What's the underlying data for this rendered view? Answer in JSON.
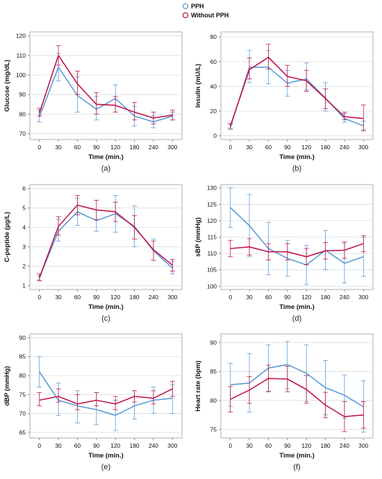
{
  "legend": {
    "items": [
      {
        "label": "PPH",
        "color": "#5b9bd5"
      },
      {
        "label": "Without PPH",
        "color": "#c0134b"
      }
    ]
  },
  "chart_data": [
    {
      "type": "line",
      "caption": "(a)",
      "xlabel": "Time (min.)",
      "ylabel": "Glucose (mg/dL)",
      "categories": [
        "0",
        "30",
        "60",
        "90",
        "120",
        "180",
        "240",
        "300"
      ],
      "ylim": [
        67,
        122
      ],
      "yticks": [
        70,
        80,
        90,
        100,
        110,
        120
      ],
      "grid": "horizontal",
      "series": [
        {
          "name": "PPH",
          "color": "#5b9bd5",
          "values": [
            78.5,
            104,
            89.5,
            82.5,
            88,
            79,
            76,
            79
          ],
          "err_low": [
            76,
            97,
            81,
            77,
            81,
            74,
            73,
            77
          ],
          "err_high": [
            82,
            111,
            99,
            89,
            95,
            84,
            79,
            81
          ]
        },
        {
          "name": "Without PPH",
          "color": "#c0134b",
          "values": [
            80.5,
            110,
            95.5,
            85,
            84.5,
            81,
            78,
            79.5
          ],
          "err_low": [
            79,
            105,
            90,
            80,
            81,
            77,
            75,
            77
          ],
          "err_high": [
            83,
            115,
            102,
            91,
            89,
            86,
            81,
            82
          ]
        }
      ]
    },
    {
      "type": "line",
      "caption": "(b)",
      "xlabel": "Time (min.)",
      "ylabel": "Insulin (mU/L)",
      "categories": [
        "0",
        "30",
        "60",
        "90",
        "120",
        "180",
        "240",
        "300"
      ],
      "ylim": [
        -3,
        84
      ],
      "yticks": [
        0,
        20,
        40,
        60,
        80
      ],
      "grid": "horizontal",
      "series": [
        {
          "name": "PPH",
          "color": "#5b9bd5",
          "values": [
            7,
            55.5,
            55.5,
            42.5,
            46,
            30.5,
            14,
            8
          ],
          "err_low": [
            5,
            43,
            42,
            32,
            37,
            20,
            11,
            5
          ],
          "err_high": [
            9,
            69,
            69,
            53,
            59,
            43,
            18,
            12
          ]
        },
        {
          "name": "Without PPH",
          "color": "#c0134b",
          "values": [
            8,
            53.5,
            63.5,
            48,
            44.5,
            30,
            15.5,
            14
          ],
          "err_low": [
            6,
            46,
            54,
            40,
            36,
            22,
            13,
            4
          ],
          "err_high": [
            10,
            63,
            74,
            57,
            53,
            38,
            19,
            25
          ]
        }
      ]
    },
    {
      "type": "line",
      "caption": "(c)",
      "xlabel": "Time (min.)",
      "ylabel": "C-peptide (µg/L)",
      "categories": [
        "0",
        "30",
        "60",
        "90",
        "120",
        "180",
        "240",
        "300"
      ],
      "ylim": [
        0.8,
        6.2
      ],
      "yticks": [
        1,
        2,
        3,
        4,
        5,
        6
      ],
      "grid": "horizontal",
      "series": [
        {
          "name": "PPH",
          "color": "#5b9bd5",
          "values": [
            1.4,
            3.8,
            4.8,
            4.35,
            4.7,
            4.05,
            2.8,
            1.9
          ],
          "err_low": [
            1.3,
            3.3,
            4.1,
            3.8,
            3.75,
            3.0,
            2.3,
            1.6
          ],
          "err_high": [
            1.5,
            4.4,
            5.5,
            4.9,
            5.65,
            5.1,
            3.4,
            2.25
          ]
        },
        {
          "name": "Without PPH",
          "color": "#c0134b",
          "values": [
            1.4,
            4.05,
            5.15,
            4.9,
            4.8,
            4.0,
            2.85,
            2.05
          ],
          "err_low": [
            1.25,
            3.6,
            4.65,
            4.4,
            4.3,
            3.4,
            2.3,
            1.75
          ],
          "err_high": [
            1.6,
            4.55,
            5.65,
            5.4,
            5.3,
            4.6,
            3.3,
            2.35
          ]
        }
      ]
    },
    {
      "type": "line",
      "caption": "(d)",
      "xlabel": "Time (min.)",
      "ylabel": "sBP (mmHg)",
      "categories": [
        "0",
        "30",
        "60",
        "90",
        "120",
        "180",
        "240",
        "300"
      ],
      "ylim": [
        99,
        131
      ],
      "yticks": [
        100,
        105,
        110,
        115,
        120,
        125,
        130
      ],
      "grid": "horizontal",
      "series": [
        {
          "name": "PPH",
          "color": "#5b9bd5",
          "values": [
            124,
            118.5,
            111.5,
            108.5,
            106.5,
            111,
            107,
            109
          ],
          "err_low": [
            118,
            109,
            103.5,
            103,
            100.5,
            105,
            101,
            103
          ],
          "err_high": [
            130,
            128,
            119.5,
            114,
            112.5,
            117,
            113,
            115
          ]
        },
        {
          "name": "Without PPH",
          "color": "#c0134b",
          "values": [
            111.5,
            112,
            110.5,
            110.5,
            109,
            110.8,
            111,
            113
          ],
          "err_low": [
            109,
            109.5,
            108,
            108,
            106.5,
            108.3,
            108.5,
            110.5
          ],
          "err_high": [
            114,
            114.5,
            113,
            113,
            111.5,
            113.3,
            113.5,
            115.5
          ]
        }
      ]
    },
    {
      "type": "line",
      "caption": "(e)",
      "xlabel": "Time (min.)",
      "ylabel": "dBP (mmHg)",
      "categories": [
        "0",
        "30",
        "60",
        "90",
        "120",
        "180",
        "240",
        "300"
      ],
      "ylim": [
        63.5,
        91
      ],
      "yticks": [
        65,
        70,
        75,
        80,
        85,
        90
      ],
      "grid": "horizontal",
      "series": [
        {
          "name": "PPH",
          "color": "#5b9bd5",
          "values": [
            81,
            73.5,
            72,
            71,
            69.5,
            72,
            73.5,
            74
          ],
          "err_low": [
            77,
            69.5,
            67.5,
            67,
            65.5,
            68.5,
            70,
            70
          ],
          "err_high": [
            85,
            78,
            76,
            75.5,
            73.5,
            76,
            77,
            77.5
          ]
        },
        {
          "name": "Without PPH",
          "color": "#c0134b",
          "values": [
            73.5,
            74.5,
            72.5,
            73.5,
            72.5,
            74.5,
            74,
            76.5
          ],
          "err_low": [
            72,
            73,
            71,
            72,
            71,
            73,
            72.5,
            74.5
          ],
          "err_high": [
            75.5,
            76.5,
            75,
            75.5,
            74.5,
            76,
            76,
            78.5
          ]
        }
      ]
    },
    {
      "type": "line",
      "caption": "(f)",
      "xlabel": "Time (min.)",
      "ylabel": "Heart rate (bpm)",
      "categories": [
        "0",
        "30",
        "60",
        "90",
        "120",
        "180",
        "240",
        "300"
      ],
      "ylim": [
        73.5,
        91.5
      ],
      "yticks": [
        75,
        80,
        85,
        90
      ],
      "grid": "horizontal",
      "series": [
        {
          "name": "PPH",
          "color": "#5b9bd5",
          "values": [
            82.7,
            83,
            85.6,
            86.2,
            84.7,
            82.2,
            80.9,
            78.9
          ],
          "err_low": [
            79,
            78,
            81.6,
            82,
            79.8,
            77.5,
            76.9,
            74.5
          ],
          "err_high": [
            86.4,
            88.1,
            89.6,
            90.2,
            89.6,
            86.9,
            84.4,
            83.4
          ]
        },
        {
          "name": "Without PPH",
          "color": "#c0134b",
          "values": [
            80.2,
            81.8,
            83.8,
            83.7,
            81.9,
            79.2,
            77.2,
            77.5
          ],
          "err_low": [
            78,
            79.5,
            81.5,
            81.5,
            79.5,
            77,
            74.6,
            75.2
          ],
          "err_high": [
            82.4,
            84.1,
            86.1,
            85.9,
            84.3,
            81.4,
            79.8,
            79.8
          ]
        }
      ]
    }
  ]
}
